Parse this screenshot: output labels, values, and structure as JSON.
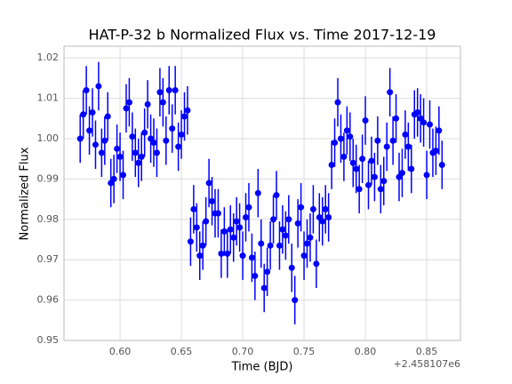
{
  "chart_data": {
    "type": "errorbar",
    "title": "HAT-P-32 b Normalized Flux vs. Time 2017-12-19",
    "x_label": "Time (BJD)",
    "y_label": "Normalized Flux",
    "x_offset_label": "+2.458107e6",
    "color": "#0000ff",
    "grid": true,
    "error": 0.006,
    "xlim": [
      0.5543,
      0.8775
    ],
    "ylim": [
      0.95,
      1.0229
    ],
    "xticks": [
      {
        "value": 0.6,
        "label": "0.60"
      },
      0.65,
      {
        "value": 0.7,
        "label": "0.70"
      },
      0.75,
      {
        "value": 0.8,
        "label": "0.80"
      },
      0.85
    ],
    "yticks": [
      0.95,
      0.96,
      0.97,
      0.98,
      0.99,
      {
        "value": 1.0,
        "label": "1.00"
      },
      1.01,
      1.02
    ],
    "x": [
      0.5675,
      0.57,
      0.5725,
      0.575,
      0.5775,
      0.58,
      0.5825,
      0.585,
      0.5875,
      0.59,
      0.5925,
      0.595,
      0.5975,
      0.6,
      0.6025,
      0.605,
      0.6075,
      0.61,
      0.6125,
      0.615,
      0.6175,
      0.62,
      0.6225,
      0.625,
      0.6275,
      0.63,
      0.6325,
      0.635,
      0.6375,
      0.64,
      0.6425,
      0.645,
      0.6475,
      0.65,
      0.6525,
      0.655,
      0.6575,
      0.66,
      0.6625,
      0.665,
      0.6675,
      0.67,
      0.6725,
      0.675,
      0.6775,
      0.68,
      0.6825,
      0.685,
      0.6875,
      0.69,
      0.6925,
      0.695,
      0.6975,
      0.7,
      0.7025,
      0.705,
      0.7075,
      0.71,
      0.7125,
      0.715,
      0.7175,
      0.72,
      0.7225,
      0.725,
      0.7275,
      0.73,
      0.7325,
      0.735,
      0.7375,
      0.74,
      0.7425,
      0.745,
      0.7475,
      0.75,
      0.7525,
      0.755,
      0.7575,
      0.76,
      0.7625,
      0.765,
      0.7675,
      0.77,
      0.7725,
      0.775,
      0.7775,
      0.78,
      0.7825,
      0.785,
      0.7875,
      0.79,
      0.7925,
      0.795,
      0.7975,
      0.8,
      0.8025,
      0.805,
      0.8075,
      0.81,
      0.8125,
      0.815,
      0.8175,
      0.82,
      0.8225,
      0.825,
      0.8275,
      0.83,
      0.8325,
      0.835,
      0.8375,
      0.84,
      0.8425,
      0.845,
      0.8475,
      0.85,
      0.8525,
      0.855,
      0.8575,
      0.86,
      0.8625
    ],
    "values": [
      1.0,
      1.006,
      1.012,
      1.002,
      1.0065,
      0.9985,
      1.013,
      0.9965,
      0.9995,
      1.0055,
      0.989,
      0.99,
      0.9975,
      0.9955,
      0.991,
      1.0075,
      1.009,
      1.0005,
      0.9965,
      0.994,
      0.9955,
      1.0015,
      1.0085,
      1.0,
      0.999,
      0.9965,
      1.0115,
      1.009,
      0.9995,
      1.012,
      1.0025,
      1.012,
      0.998,
      1.001,
      1.0055,
      1.007,
      0.9745,
      0.9825,
      0.978,
      0.971,
      0.9735,
      0.9795,
      0.989,
      0.9845,
      0.9815,
      0.9815,
      0.9715,
      0.977,
      0.9715,
      0.9775,
      0.9755,
      0.9795,
      0.978,
      0.971,
      0.9805,
      0.983,
      0.9705,
      0.966,
      0.9865,
      0.974,
      0.963,
      0.967,
      0.9735,
      0.98,
      0.986,
      0.9735,
      0.9775,
      0.976,
      0.98,
      0.968,
      0.96,
      0.979,
      0.983,
      0.971,
      0.974,
      0.9755,
      0.9825,
      0.969,
      0.9805,
      0.9795,
      0.9825,
      0.9805,
      0.9935,
      0.999,
      1.009,
      1.0,
      0.9955,
      1.002,
      1.0005,
      0.994,
      0.9925,
      0.9875,
      0.995,
      1.0045,
      0.9885,
      0.9945,
      0.9905,
      0.9995,
      0.9875,
      0.9895,
      0.998,
      1.0115,
      0.9995,
      1.005,
      0.9905,
      0.9915,
      1.001,
      0.998,
      0.9925,
      1.006,
      1.0065,
      1.005,
      1.004,
      0.991,
      1.0035,
      0.9965,
      0.997,
      1.002,
      0.9935
    ]
  }
}
